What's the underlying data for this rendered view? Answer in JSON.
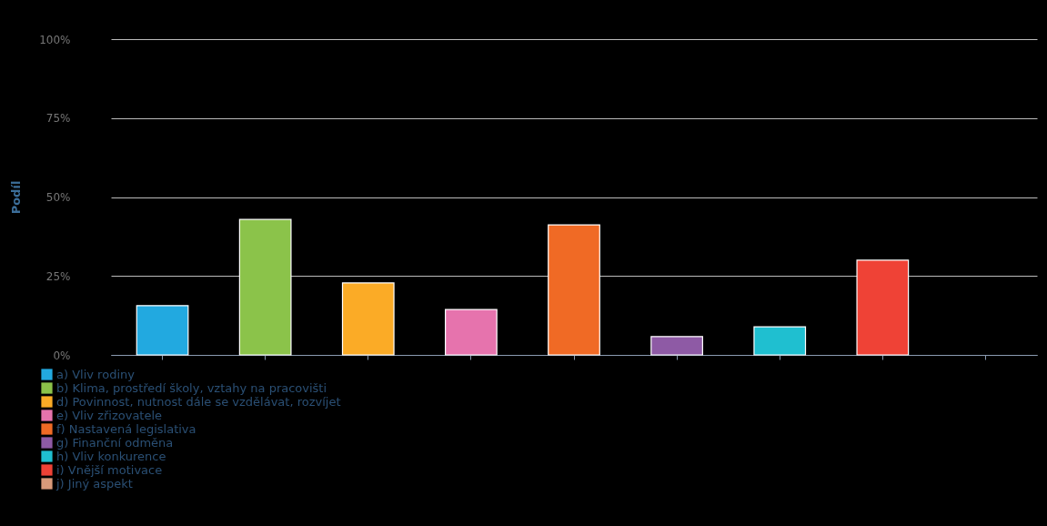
{
  "chart_data": {
    "type": "bar",
    "ylabel": "Podíl",
    "categories": [
      null,
      null,
      null,
      null,
      null,
      null,
      null,
      null,
      null
    ],
    "series": [
      {
        "name": "a) Vliv rodiny",
        "color": "#22a9e0",
        "values": [
          15.6,
          null,
          null,
          null,
          null,
          null,
          null,
          null,
          null
        ]
      },
      {
        "name": "b) Klima, prostředí školy, vztahy na pracovišti",
        "color": "#8bc34a",
        "values": [
          null,
          42.9,
          null,
          null,
          null,
          null,
          null,
          null,
          null
        ]
      },
      {
        "name": "d) Povinnost, nutnost dále se vzdělávat, rozvíjet",
        "color": "#fbab26",
        "values": [
          null,
          null,
          22.8,
          null,
          null,
          null,
          null,
          null,
          null
        ]
      },
      {
        "name": "e) Vliv zřizovatele",
        "color": "#e673ad",
        "values": [
          null,
          null,
          null,
          14.4,
          null,
          null,
          null,
          null,
          null
        ]
      },
      {
        "name": "f) Nastavená legislativa",
        "color": "#f06a25",
        "values": [
          null,
          null,
          null,
          null,
          41.2,
          null,
          null,
          null,
          null
        ]
      },
      {
        "name": "g) Finanční odměna",
        "color": "#8e5aa5",
        "values": [
          null,
          null,
          null,
          null,
          null,
          5.8,
          null,
          null,
          null
        ]
      },
      {
        "name": "h) Vliv konkurence",
        "color": "#1fbfd0",
        "values": [
          null,
          null,
          null,
          null,
          null,
          null,
          8.9,
          null,
          null
        ]
      },
      {
        "name": "i) Vnější motivace",
        "color": "#ef4236",
        "values": [
          null,
          null,
          null,
          null,
          null,
          null,
          null,
          30.0,
          null
        ]
      },
      {
        "name": "j) Jiný aspekt",
        "color": "#d99a7a",
        "values": [
          null,
          null,
          null,
          null,
          null,
          null,
          null,
          null,
          null
        ]
      }
    ],
    "ylim": [
      0,
      100
    ],
    "yticks": [
      {
        "value": 0,
        "label": "0%"
      },
      {
        "value": 25,
        "label": "25%"
      },
      {
        "value": 50,
        "label": "50%"
      },
      {
        "value": 75,
        "label": "75%"
      },
      {
        "value": 100,
        "label": "100%"
      }
    ],
    "grid": "y",
    "legend": "bottom left",
    "tick_labels": "y"
  }
}
